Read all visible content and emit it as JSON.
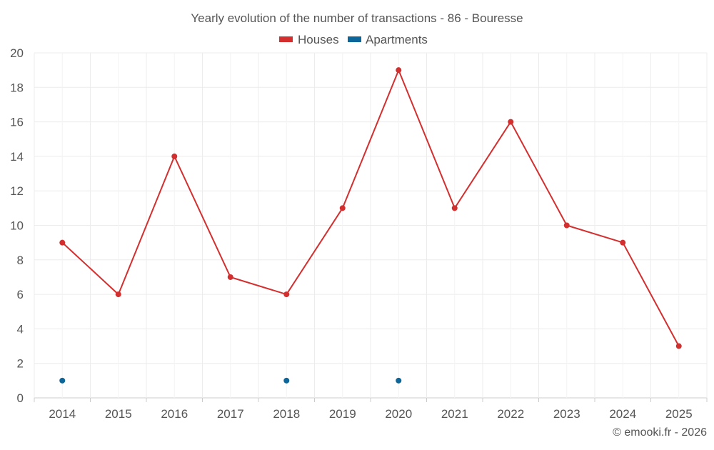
{
  "chart_data": {
    "type": "line",
    "title": "Yearly evolution of the number of transactions - 86 - Bouresse",
    "categories": [
      "2014",
      "2015",
      "2016",
      "2017",
      "2018",
      "2019",
      "2020",
      "2021",
      "2022",
      "2023",
      "2024",
      "2025"
    ],
    "series": [
      {
        "name": "Houses",
        "color": "#d32f2f",
        "values": [
          9,
          6,
          14,
          7,
          6,
          11,
          19,
          11,
          16,
          10,
          9,
          3
        ]
      },
      {
        "name": "Apartments",
        "color": "#0d6699",
        "values": [
          1,
          null,
          null,
          null,
          1,
          null,
          1,
          null,
          null,
          null,
          null,
          null
        ]
      }
    ],
    "ylim": [
      0,
      20
    ],
    "yticks": [
      0,
      2,
      4,
      6,
      8,
      10,
      12,
      14,
      16,
      18,
      20
    ],
    "grid": true,
    "legend": "top-center",
    "xlabel": "",
    "ylabel": ""
  },
  "footer": {
    "credit": "© emooki.fr - 2026"
  },
  "colors": {
    "grid": "#ececec",
    "axis": "#cccccc",
    "text": "#555555"
  }
}
